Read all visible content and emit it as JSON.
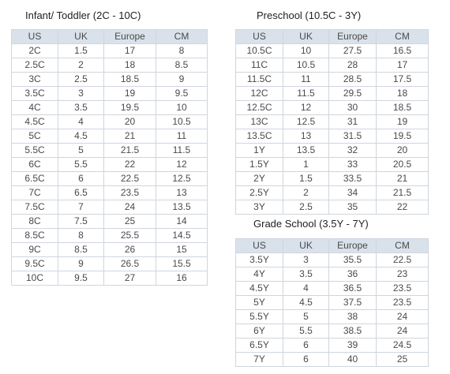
{
  "infant": {
    "title": "Infant/ Toddler (2C - 10C)",
    "headers": [
      "US",
      "UK",
      "Europe",
      "CM"
    ],
    "rows": [
      [
        "2C",
        "1.5",
        "17",
        "8"
      ],
      [
        "2.5C",
        "2",
        "18",
        "8.5"
      ],
      [
        "3C",
        "2.5",
        "18.5",
        "9"
      ],
      [
        "3.5C",
        "3",
        "19",
        "9.5"
      ],
      [
        "4C",
        "3.5",
        "19.5",
        "10"
      ],
      [
        "4.5C",
        "4",
        "20",
        "10.5"
      ],
      [
        "5C",
        "4.5",
        "21",
        "11"
      ],
      [
        "5.5C",
        "5",
        "21.5",
        "11.5"
      ],
      [
        "6C",
        "5.5",
        "22",
        "12"
      ],
      [
        "6.5C",
        "6",
        "22.5",
        "12.5"
      ],
      [
        "7C",
        "6.5",
        "23.5",
        "13"
      ],
      [
        "7.5C",
        "7",
        "24",
        "13.5"
      ],
      [
        "8C",
        "7.5",
        "25",
        "14"
      ],
      [
        "8.5C",
        "8",
        "25.5",
        "14.5"
      ],
      [
        "9C",
        "8.5",
        "26",
        "15"
      ],
      [
        "9.5C",
        "9",
        "26.5",
        "15.5"
      ],
      [
        "10C",
        "9.5",
        "27",
        "16"
      ]
    ]
  },
  "preschool": {
    "title": "Preschool (10.5C - 3Y)",
    "headers": [
      "US",
      "UK",
      "Europe",
      "CM"
    ],
    "rows": [
      [
        "10.5C",
        "10",
        "27.5",
        "16.5"
      ],
      [
        "11C",
        "10.5",
        "28",
        "17"
      ],
      [
        "11.5C",
        "11",
        "28.5",
        "17.5"
      ],
      [
        "12C",
        "11.5",
        "29.5",
        "18"
      ],
      [
        "12.5C",
        "12",
        "30",
        "18.5"
      ],
      [
        "13C",
        "12.5",
        "31",
        "19"
      ],
      [
        "13.5C",
        "13",
        "31.5",
        "19.5"
      ],
      [
        "1Y",
        "13.5",
        "32",
        "20"
      ],
      [
        "1.5Y",
        "1",
        "33",
        "20.5"
      ],
      [
        "2Y",
        "1.5",
        "33.5",
        "21"
      ],
      [
        "2.5Y",
        "2",
        "34",
        "21.5"
      ],
      [
        "3Y",
        "2.5",
        "35",
        "22"
      ]
    ]
  },
  "gradeschool": {
    "title": "Grade School (3.5Y - 7Y)",
    "headers": [
      "US",
      "UK",
      "Europe",
      "CM"
    ],
    "rows": [
      [
        "3.5Y",
        "3",
        "35.5",
        "22.5"
      ],
      [
        "4Y",
        "3.5",
        "36",
        "23"
      ],
      [
        "4.5Y",
        "4",
        "36.5",
        "23.5"
      ],
      [
        "5Y",
        "4.5",
        "37.5",
        "23.5"
      ],
      [
        "5.5Y",
        "5",
        "38",
        "24"
      ],
      [
        "6Y",
        "5.5",
        "38.5",
        "24"
      ],
      [
        "6.5Y",
        "6",
        "39",
        "24.5"
      ],
      [
        "7Y",
        "6",
        "40",
        "25"
      ]
    ]
  }
}
